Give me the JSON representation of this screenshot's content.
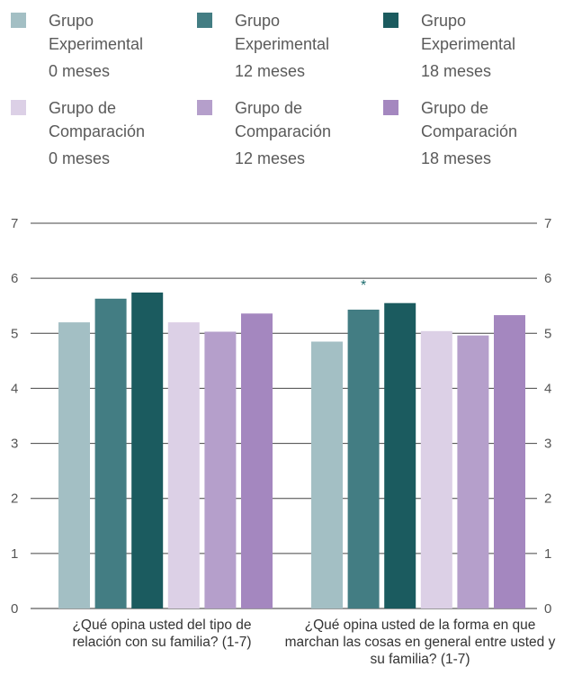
{
  "legend": [
    {
      "line1": "Grupo\nExperimental",
      "line2": "0 meses",
      "color": "#a3bfc4"
    },
    {
      "line1": "Grupo\nExperimental",
      "line2": "12 meses",
      "color": "#437d83"
    },
    {
      "line1": "Grupo\nExperimental",
      "line2": "18 meses",
      "color": "#1b5b5f"
    },
    {
      "line1": "Grupo de\nComparación",
      "line2": "0 meses",
      "color": "#dcd0e6"
    },
    {
      "line1": "Grupo de\nComparación",
      "line2": "12 meses",
      "color": "#b59fcb"
    },
    {
      "line1": "Grupo de\nComparación",
      "line2": "18 meses",
      "color": "#a487bf"
    }
  ],
  "chart_data": {
    "type": "bar",
    "categories": [
      "¿Qué opina usted del tipo de relación con su familia? (1-7)",
      "¿Qué opina usted de la forma en que marchan las cosas en general entre usted y su familia? (1-7)"
    ],
    "series": [
      {
        "name": "Grupo Experimental 0 meses",
        "values": [
          5.2,
          4.85
        ]
      },
      {
        "name": "Grupo Experimental 12 meses",
        "values": [
          5.63,
          5.43
        ]
      },
      {
        "name": "Grupo Experimental 18 meses",
        "values": [
          5.74,
          5.55
        ]
      },
      {
        "name": "Grupo de Comparación 0 meses",
        "values": [
          5.2,
          5.04
        ]
      },
      {
        "name": "Grupo de Comparación 12 meses",
        "values": [
          5.03,
          4.96
        ]
      },
      {
        "name": "Grupo de Comparación 18 meses",
        "values": [
          5.36,
          5.33
        ]
      }
    ],
    "ylim": [
      0,
      7
    ],
    "yticks": [
      0,
      1,
      2,
      3,
      4,
      5,
      6,
      7
    ],
    "grid": true,
    "legend": "top",
    "annotations": [
      {
        "text": "*",
        "category": 1,
        "series": 1
      }
    ]
  }
}
